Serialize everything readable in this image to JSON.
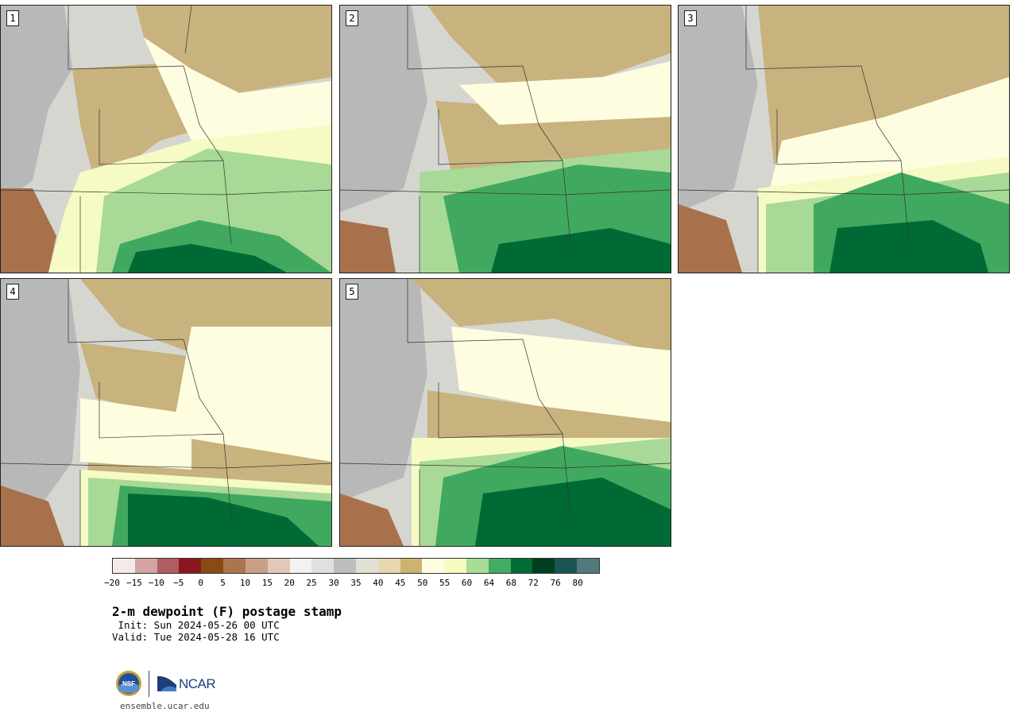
{
  "panels": [
    {
      "label": "1",
      "scheme": [
        [
          "#d9d9d3",
          "#c8b27d",
          "#fffde0",
          "#c8b27d",
          "#fffde0",
          "#f6fbc5",
          "#a8d996",
          "#41a85f",
          "#006a34"
        ]
      ]
    },
    {
      "label": "2",
      "scheme": [
        [
          "#d9d9d3",
          "#c8b27d",
          "#fffde0",
          "#a8d996",
          "#41a85f",
          "#006a34"
        ]
      ]
    },
    {
      "label": "3",
      "scheme": [
        [
          "#d9d9d3",
          "#c8b27d",
          "#fffde0",
          "#f6fbc5",
          "#a8d996",
          "#41a85f",
          "#006a34"
        ]
      ]
    },
    {
      "label": "4",
      "scheme": [
        [
          "#d9d9d3",
          "#c8b27d",
          "#fffde0",
          "#c8b27d",
          "#f6fbc5",
          "#a8d996",
          "#41a85f",
          "#006a34"
        ]
      ]
    },
    {
      "label": "5",
      "scheme": [
        [
          "#d9d9d3",
          "#c8b27d",
          "#fffde0",
          "#f6fbc5",
          "#a8d996",
          "#41a85f",
          "#006a34"
        ]
      ]
    }
  ],
  "colorbar": {
    "colors": [
      "#f5eaea",
      "#d4a3a6",
      "#b25d64",
      "#8a1720",
      "#8a4a14",
      "#aa7650",
      "#c89e86",
      "#e2c8b6",
      "#f2f2f2",
      "#e0e0e0",
      "#bdbdbd",
      "#e0e0d4",
      "#e6d7ad",
      "#cdb272",
      "#fffde0",
      "#f8fbbf",
      "#a6dc95",
      "#43ac62",
      "#006d35",
      "#003d21",
      "#1c5555",
      "#527a7e"
    ],
    "ticks": [
      "−20",
      "−15",
      "−10",
      "−5",
      "0",
      "5",
      "10",
      "15",
      "20",
      "25",
      "30",
      "35",
      "40",
      "45",
      "50",
      "55",
      "60",
      "64",
      "68",
      "72",
      "76",
      "80"
    ]
  },
  "title": "2-m dewpoint (F) postage stamp",
  "init": " Init: Sun 2024-05-26 00 UTC",
  "valid": "Valid: Tue 2024-05-28 16 UTC",
  "site": "ensemble.ucar.edu",
  "logos": {
    "nsf": "NSF",
    "ncar": "NCAR"
  }
}
